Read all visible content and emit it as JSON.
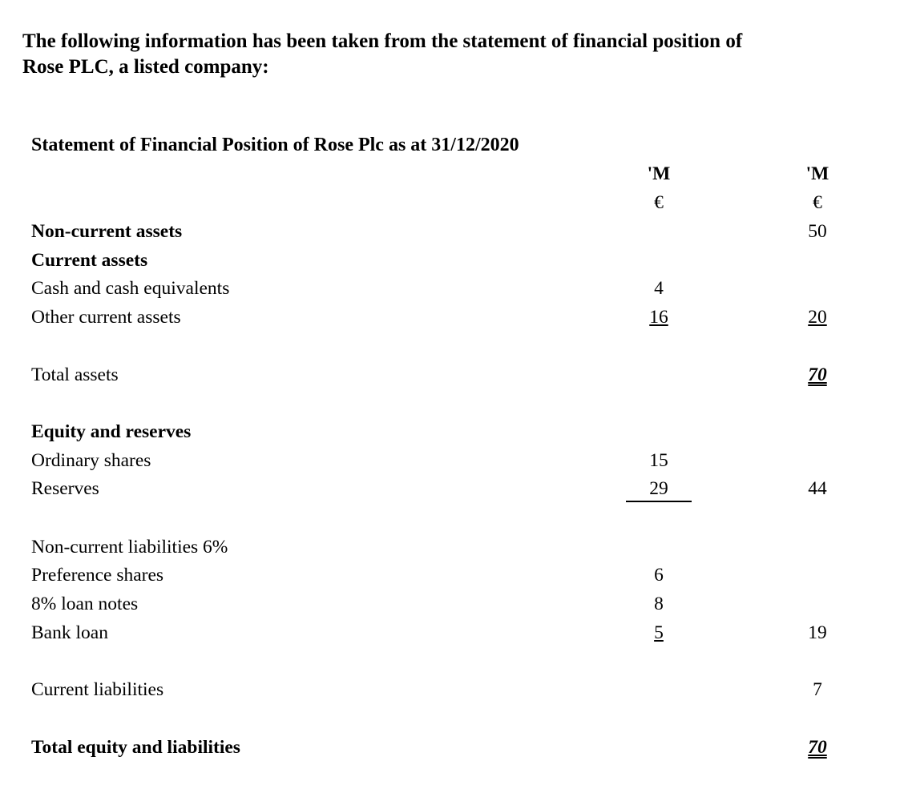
{
  "intro": {
    "line1": "The following information has been taken from the statement of financial position of",
    "line2": "Rose PLC, a listed company:"
  },
  "statement": {
    "title": "Statement of Financial Position of Rose Plc as at 31/12/2020",
    "col1_header": [
      "'M",
      "€"
    ],
    "col2_header": [
      "'M",
      "€"
    ],
    "rows": {
      "non_current_assets": {
        "label": "Non-current assets",
        "col2": "50"
      },
      "current_assets": {
        "label": "Current assets"
      },
      "cash": {
        "label": "Cash and cash equivalents",
        "col1": "4"
      },
      "other_current": {
        "label": "Other current assets",
        "col1": "16",
        "col2": "20"
      },
      "total_assets": {
        "label": "Total assets",
        "col2": "70"
      },
      "equity_reserves": {
        "label": "Equity and reserves"
      },
      "ordinary_shares": {
        "label": "Ordinary shares",
        "col1": "15"
      },
      "reserves": {
        "label": "Reserves",
        "col1": "29",
        "col2": "44"
      },
      "ncl": {
        "label": "Non-current liabilities 6%"
      },
      "preference_shares": {
        "label": "Preference shares",
        "col1": "6"
      },
      "loan_notes": {
        "label": "8% loan notes",
        "col1": "8"
      },
      "bank_loan": {
        "label": "Bank loan",
        "col1": "5",
        "col2": "19"
      },
      "current_liabilities": {
        "label": "Current liabilities",
        "col2": "7"
      },
      "total_equity_liabilities": {
        "label": "Total equity and liabilities",
        "col2": "70"
      }
    }
  }
}
